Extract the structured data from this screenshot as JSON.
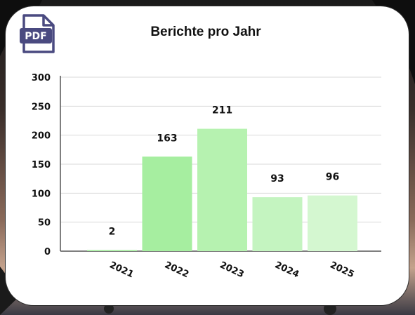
{
  "pdf_icon": {
    "label": "PDF",
    "color": "#4a4a80"
  },
  "chart_data": {
    "type": "bar",
    "title": "Berichte pro Jahr",
    "xlabel": "",
    "ylabel": "",
    "categories": [
      "2021",
      "2022",
      "2023",
      "2024",
      "2025"
    ],
    "values": [
      2,
      163,
      211,
      93,
      96
    ],
    "colors": [
      "#a6eea0",
      "#a6eea0",
      "#b6f2b0",
      "#c4f4c0",
      "#d4f7d0"
    ],
    "ylim": [
      0,
      300
    ],
    "yticks": [
      0,
      50,
      100,
      150,
      200,
      250,
      300
    ],
    "grid": true,
    "legend": "none"
  }
}
